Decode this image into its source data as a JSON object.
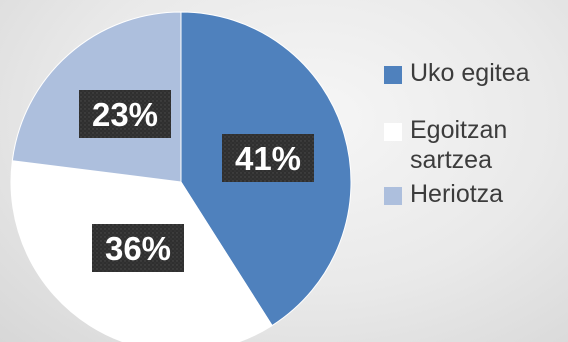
{
  "chart_data": {
    "type": "pie",
    "start_angle_deg": 0,
    "direction": "clockwise",
    "legend_position": "right",
    "slices": [
      {
        "label": "Uko egitea",
        "value": 41,
        "data_label": "41%",
        "color": "#4f81bd"
      },
      {
        "label": "Egoitzan sartzea",
        "value": 36,
        "data_label": "36%",
        "color": "#ffffff"
      },
      {
        "label": "Heriotza",
        "value": 23,
        "data_label": "23%",
        "color": "#adbfdd"
      }
    ]
  }
}
